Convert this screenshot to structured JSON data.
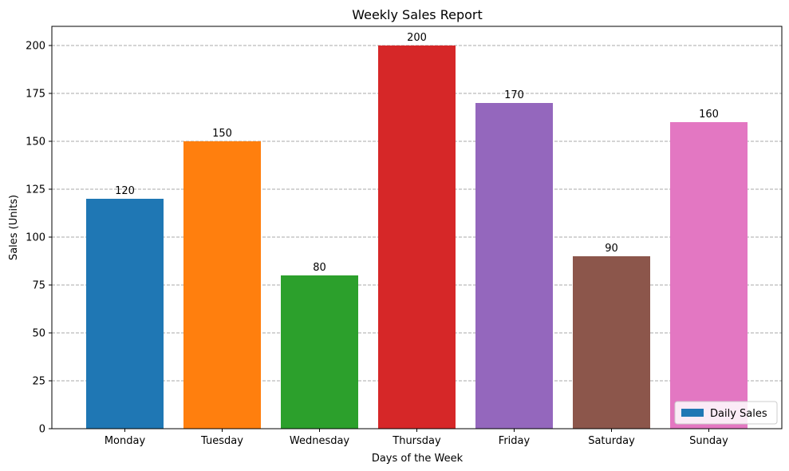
{
  "chart_data": {
    "type": "bar",
    "title": "Weekly Sales Report",
    "xlabel": "Days of the Week",
    "ylabel": "Sales (Units)",
    "categories": [
      "Monday",
      "Tuesday",
      "Wednesday",
      "Thursday",
      "Friday",
      "Saturday",
      "Sunday"
    ],
    "series": [
      {
        "name": "Daily Sales",
        "values": [
          120,
          150,
          80,
          200,
          170,
          90,
          160
        ]
      }
    ],
    "bar_colors": [
      "#1f77b4",
      "#ff7f0e",
      "#2ca02c",
      "#d62728",
      "#9467bd",
      "#8c564b",
      "#e377c2"
    ],
    "data_labels": [
      "120",
      "150",
      "80",
      "200",
      "170",
      "90",
      "160"
    ],
    "ylim": [
      0,
      210
    ],
    "yticks": [
      0,
      25,
      50,
      75,
      100,
      125,
      150,
      175,
      200
    ],
    "grid": "y-dashed",
    "legend": {
      "position": "lower-right",
      "entries": [
        "Daily Sales"
      ]
    }
  }
}
